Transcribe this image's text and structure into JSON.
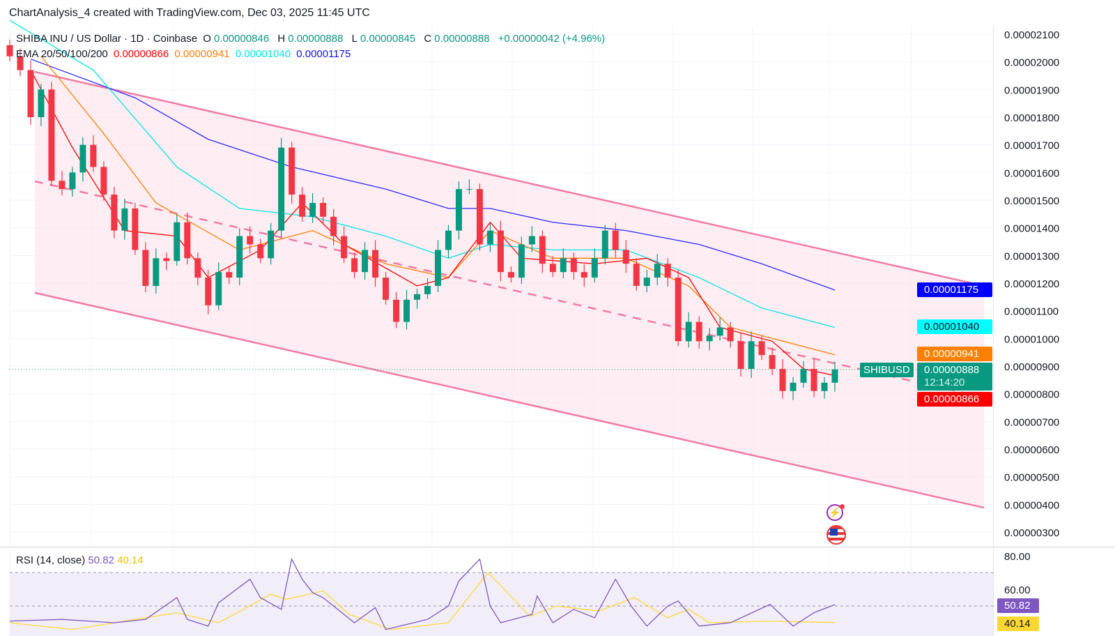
{
  "header": {
    "title": "ChartAnalysis_4 created with TradingView.com, Dec 03, 2025 11:45 UTC"
  },
  "legend": {
    "symbol": "SHIBA INU / US Dollar · 1D · Coinbase",
    "o_label": "O",
    "o": "0.00000846",
    "h_label": "H",
    "h": "0.00000888",
    "l_label": "L",
    "l": "0.00000845",
    "c_label": "C",
    "c": "0.00000888",
    "change": "+0.00000042 (+4.96%)",
    "ema_label": "EMA 20/50/100/200",
    "ema20": "0.00000866",
    "ema50": "0.00000941",
    "ema100": "0.00001040",
    "ema200": "0.00001175"
  },
  "price_badges": {
    "symbol_tag": "SHIBUSD",
    "last": "0.00000888",
    "countdown": "12:14:20",
    "ema20": "0.00000866",
    "ema50": "0.00000941",
    "ema100": "0.00001040",
    "ema200": "0.00001175"
  },
  "rsi": {
    "label": "RSI (14, close)",
    "value": "50.82",
    "ma_value": "40.14"
  },
  "icons": [
    "lightning-icon",
    "us-flag-icon"
  ],
  "colors": {
    "up": "#089981",
    "down": "#f23645",
    "ema20": "#ff0000",
    "ema50": "#ff7f00",
    "ema100": "#00e5e5",
    "ema200": "#2b2bff",
    "channel": "#f27ba0",
    "rsi": "#7e57c2",
    "rsi_ma": "#fdd835"
  },
  "chart_data": {
    "type": "candlestick",
    "price_axis": {
      "min": 3e-06,
      "max": 2.1e-05,
      "step": 1e-06,
      "ticks": [
        "0.00002100",
        "0.00002000",
        "0.00001900",
        "0.00001800",
        "0.00001700",
        "0.00001600",
        "0.00001500",
        "0.00001400",
        "0.00001300",
        "0.00001200",
        "0.00001100",
        "0.00001000",
        "0.00000900",
        "0.00000800",
        "0.00000700",
        "0.00000600",
        "0.00000500",
        "0.00000400",
        "0.00000300"
      ]
    },
    "closes": [
      2.02e-05,
      1.97e-05,
      1.8e-05,
      1.9e-05,
      1.57e-05,
      1.54e-05,
      1.6e-05,
      1.7e-05,
      1.62e-05,
      1.52e-05,
      1.39e-05,
      1.47e-05,
      1.32e-05,
      1.19e-05,
      1.29e-05,
      1.28e-05,
      1.42e-05,
      1.29e-05,
      1.22e-05,
      1.12e-05,
      1.24e-05,
      1.22e-05,
      1.37e-05,
      1.34e-05,
      1.29e-05,
      1.39e-05,
      1.69e-05,
      1.52e-05,
      1.44e-05,
      1.49e-05,
      1.44e-05,
      1.37e-05,
      1.29e-05,
      1.24e-05,
      1.32e-05,
      1.22e-05,
      1.14e-05,
      1.06e-05,
      1.14e-05,
      1.16e-05,
      1.19e-05,
      1.32e-05,
      1.39e-05,
      1.54e-05,
      1.54e-05,
      1.34e-05,
      1.39e-05,
      1.24e-05,
      1.22e-05,
      1.34e-05,
      1.37e-05,
      1.27e-05,
      1.24e-05,
      1.29e-05,
      1.24e-05,
      1.22e-05,
      1.29e-05,
      1.39e-05,
      1.32e-05,
      1.27e-05,
      1.19e-05,
      1.22e-05,
      1.27e-05,
      1.22e-05,
      9.9e-06,
      1.06e-05,
      9.9e-06,
      1.01e-05,
      1.04e-05,
      9.9e-06,
      8.9e-06,
      9.9e-06,
      9.4e-06,
      8.9e-06,
      8.1e-06,
      8.4e-06,
      8.9e-06,
      8.1e-06,
      8.4e-06,
      8.88e-06
    ],
    "ema20": [
      [
        2,
        1.97e-05
      ],
      [
        6,
        1.69e-05
      ],
      [
        11,
        1.39e-05
      ],
      [
        16,
        1.37e-05
      ],
      [
        19,
        1.22e-05
      ],
      [
        24,
        1.32e-05
      ],
      [
        28,
        1.49e-05
      ],
      [
        32,
        1.34e-05
      ],
      [
        39,
        1.19e-05
      ],
      [
        42,
        1.22e-05
      ],
      [
        46,
        1.42e-05
      ],
      [
        49,
        1.29e-05
      ],
      [
        56,
        1.27e-05
      ],
      [
        61,
        1.29e-05
      ],
      [
        65,
        1.22e-05
      ],
      [
        68,
        1.04e-05
      ],
      [
        73,
        9.9e-06
      ],
      [
        76,
        8.9e-06
      ],
      [
        79,
        8.66e-06
      ]
    ],
    "ema50": [
      [
        3,
        2.02e-05
      ],
      [
        9,
        1.74e-05
      ],
      [
        14,
        1.49e-05
      ],
      [
        22,
        1.32e-05
      ],
      [
        29,
        1.39e-05
      ],
      [
        36,
        1.27e-05
      ],
      [
        42,
        1.22e-05
      ],
      [
        46,
        1.39e-05
      ],
      [
        52,
        1.29e-05
      ],
      [
        59,
        1.29e-05
      ],
      [
        65,
        1.19e-05
      ],
      [
        69,
        1.04e-05
      ],
      [
        79,
        9.41e-06
      ]
    ],
    "ema100": [
      [
        0,
        2.15e-05
      ],
      [
        8,
        1.97e-05
      ],
      [
        16,
        1.62e-05
      ],
      [
        22,
        1.47e-05
      ],
      [
        29,
        1.44e-05
      ],
      [
        36,
        1.37e-05
      ],
      [
        42,
        1.29e-05
      ],
      [
        46,
        1.34e-05
      ],
      [
        52,
        1.32e-05
      ],
      [
        59,
        1.32e-05
      ],
      [
        66,
        1.22e-05
      ],
      [
        72,
        1.11e-05
      ],
      [
        79,
        1.04e-05
      ]
    ],
    "ema200": [
      [
        2,
        2.01e-05
      ],
      [
        12,
        1.87e-05
      ],
      [
        19,
        1.72e-05
      ],
      [
        27,
        1.62e-05
      ],
      [
        36,
        1.54e-05
      ],
      [
        42,
        1.47e-05
      ],
      [
        46,
        1.47e-05
      ],
      [
        52,
        1.42e-05
      ],
      [
        59,
        1.39e-05
      ],
      [
        66,
        1.34e-05
      ],
      [
        72,
        1.27e-05
      ],
      [
        79,
        1.175e-05
      ]
    ],
    "channel": {
      "start_bar": 2.4,
      "end_bar": 93.3,
      "upper": [
        1.964e-05,
        1.19e-05
      ],
      "middle": [
        1.568e-05,
        7.87e-06
      ],
      "lower": [
        1.165e-05,
        3.88e-06
      ]
    },
    "rsi_axis": {
      "ticks": [
        "80.00",
        "60.00"
      ],
      "bands": [
        70,
        50
      ]
    },
    "rsi_values": [
      [
        0,
        41
      ],
      [
        5,
        42
      ],
      [
        10,
        40
      ],
      [
        13,
        42
      ],
      [
        16,
        55
      ],
      [
        17,
        42
      ],
      [
        19,
        38
      ],
      [
        20,
        52
      ],
      [
        23,
        66
      ],
      [
        24,
        55
      ],
      [
        26,
        48
      ],
      [
        27,
        78
      ],
      [
        28,
        66
      ],
      [
        29,
        58
      ],
      [
        30,
        55
      ],
      [
        31,
        50
      ],
      [
        33,
        40
      ],
      [
        35,
        49
      ],
      [
        36,
        36
      ],
      [
        40,
        42
      ],
      [
        42,
        50
      ],
      [
        43,
        65
      ],
      [
        45,
        78
      ],
      [
        46,
        50
      ],
      [
        47,
        40
      ],
      [
        50,
        45
      ],
      [
        50.5,
        56
      ],
      [
        52,
        40
      ],
      [
        54,
        48
      ],
      [
        56,
        43
      ],
      [
        58,
        66
      ],
      [
        59.5,
        50
      ],
      [
        61,
        38
      ],
      [
        63,
        50
      ],
      [
        64,
        53
      ],
      [
        66,
        38
      ],
      [
        69,
        40
      ],
      [
        72.8,
        51
      ],
      [
        75,
        38
      ],
      [
        77,
        46
      ],
      [
        79,
        50.82
      ]
    ],
    "rsi_ma": [
      [
        0,
        40
      ],
      [
        6,
        36
      ],
      [
        16,
        46
      ],
      [
        20,
        40
      ],
      [
        25,
        57
      ],
      [
        26.5,
        54
      ],
      [
        30,
        59
      ],
      [
        32.5,
        45
      ],
      [
        36.5,
        36
      ],
      [
        42,
        40
      ],
      [
        45.8,
        70
      ],
      [
        49.8,
        44
      ],
      [
        52.4,
        50
      ],
      [
        56.4,
        47
      ],
      [
        59.8,
        55
      ],
      [
        63,
        43
      ],
      [
        65,
        48
      ],
      [
        67,
        40
      ],
      [
        72.4,
        41
      ],
      [
        79,
        40.14
      ]
    ]
  }
}
